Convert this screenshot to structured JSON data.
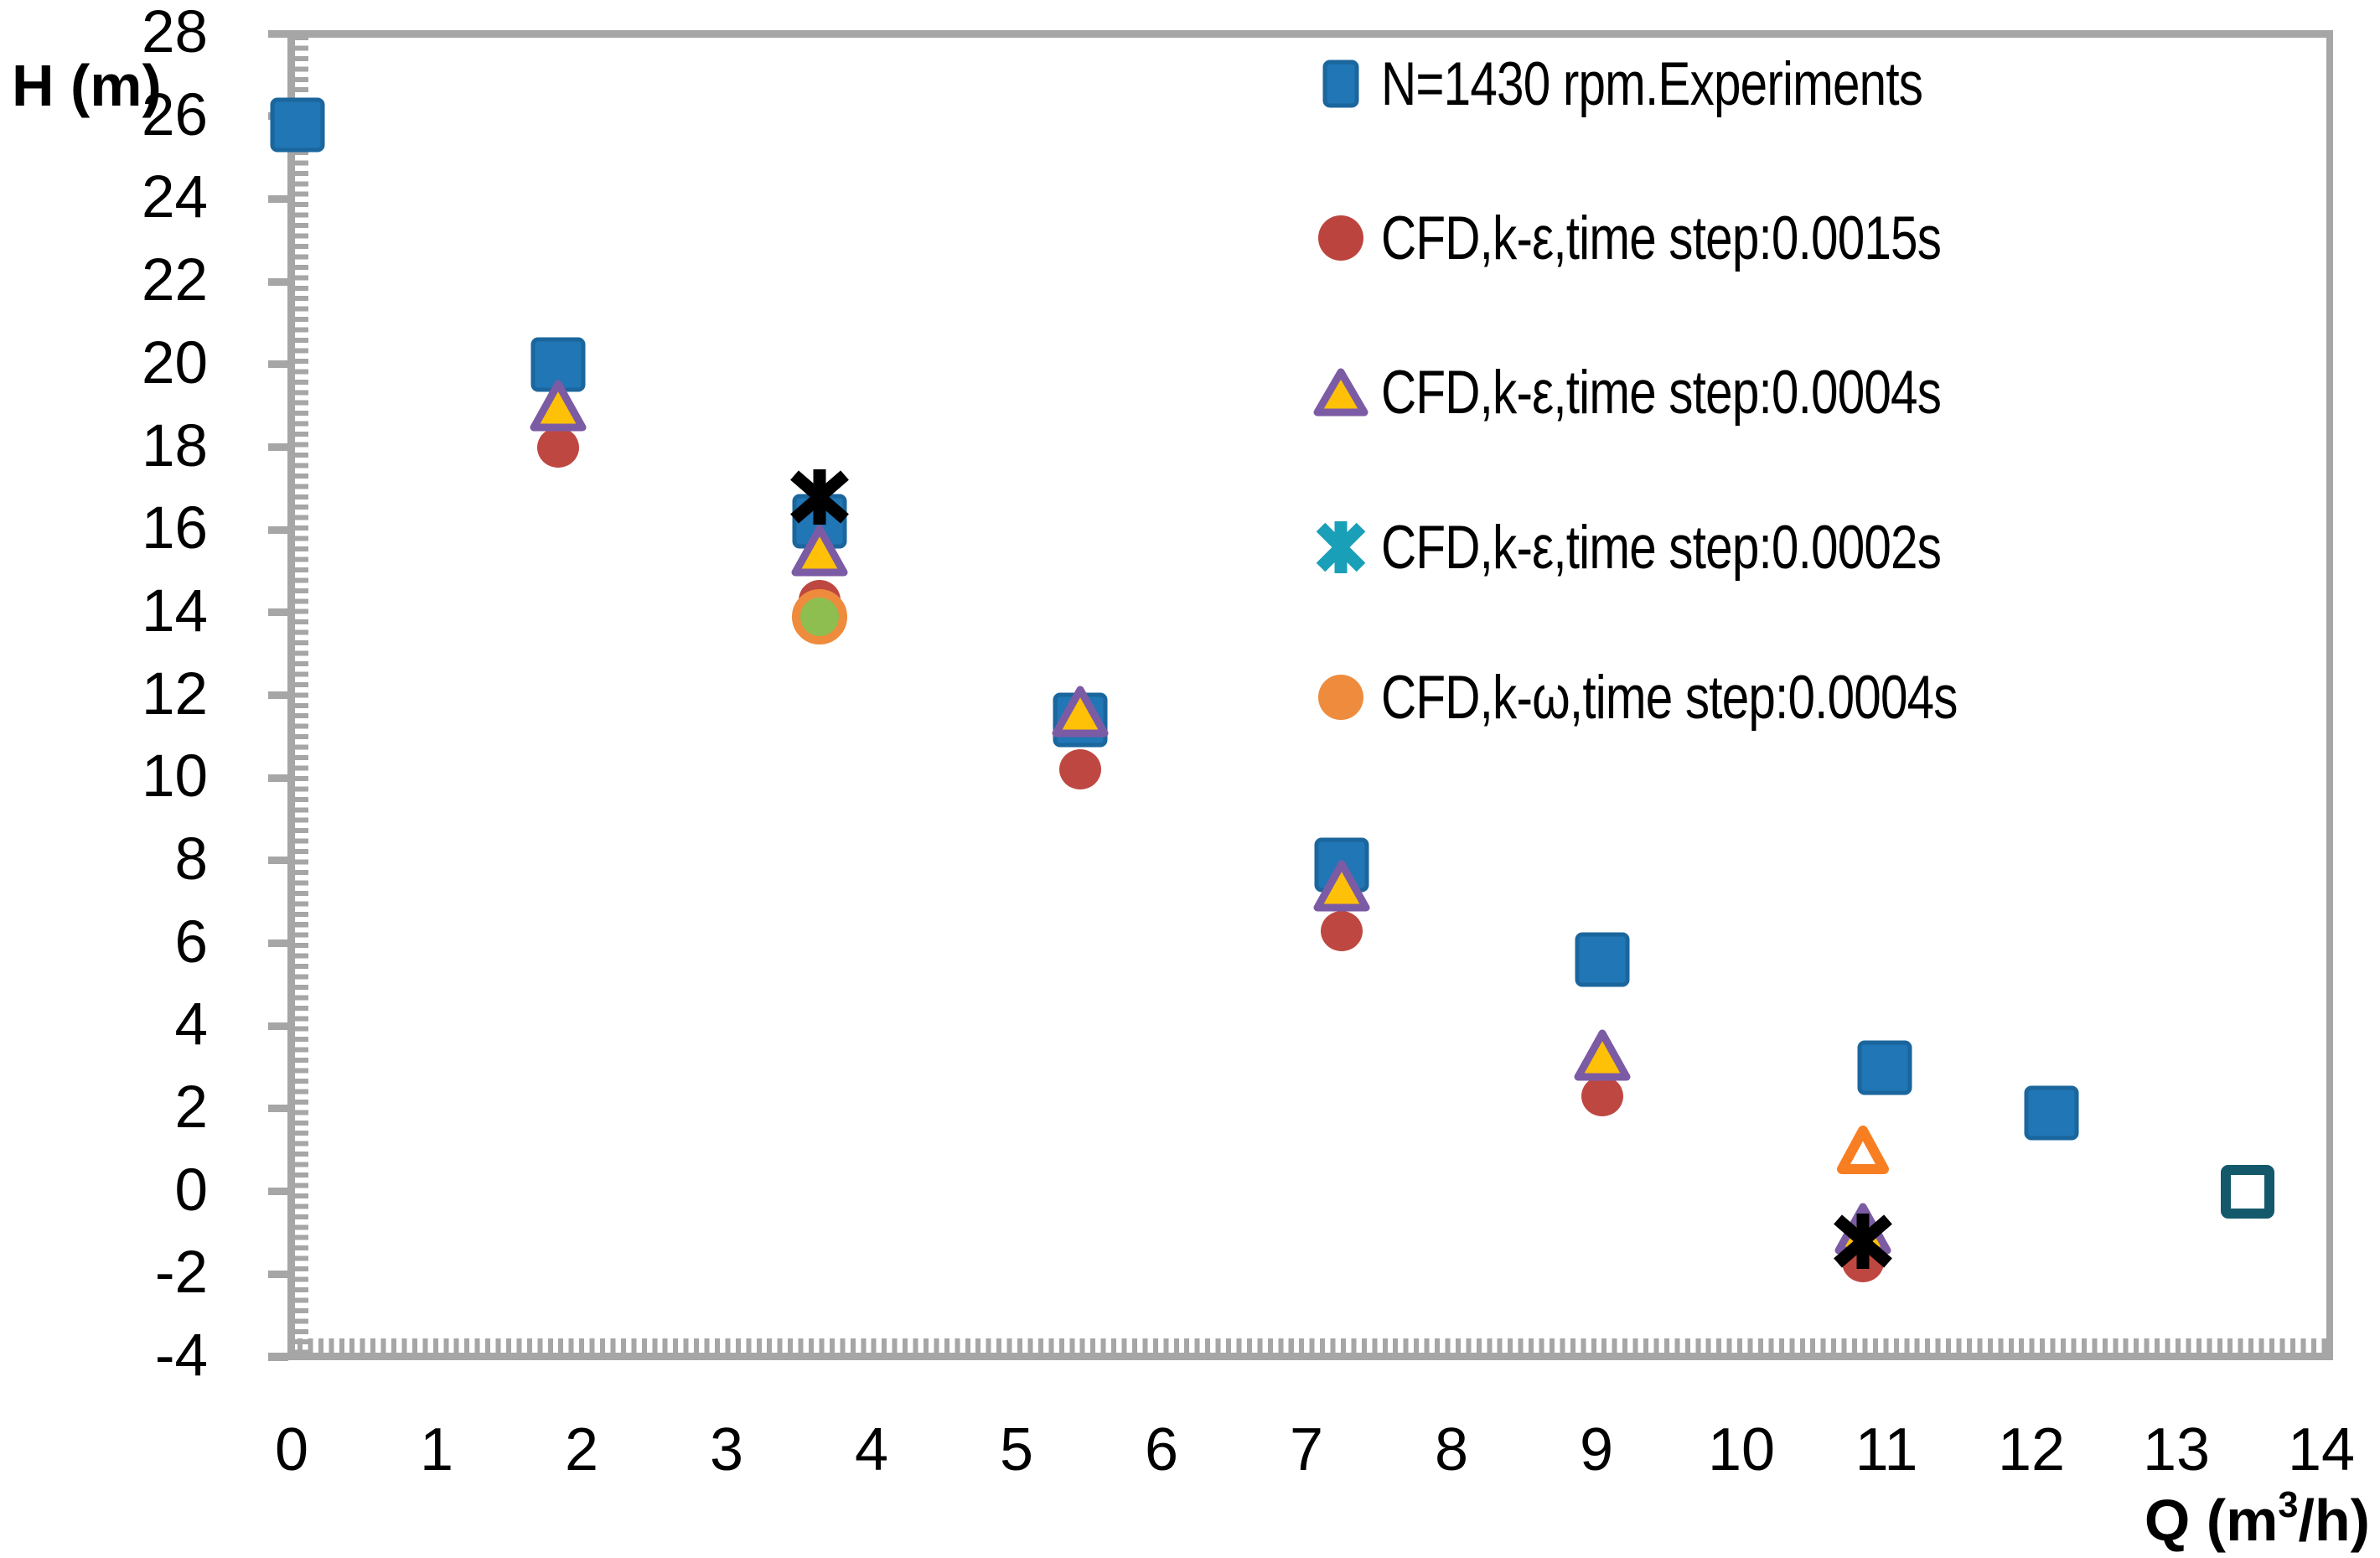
{
  "figure": {
    "bg": "#FFFFFF",
    "axis_color": "#A6A6A6",
    "text_color": "#000000"
  },
  "axes": {
    "y_title": "H (m)",
    "x_title_pre": "Q (m",
    "x_title_sup": "3",
    "x_title_post": "/h)",
    "x_tick_labels": [
      "0",
      "1",
      "2",
      "3",
      "4",
      "5",
      "6",
      "7",
      "8",
      "9",
      "10",
      "11",
      "12",
      "13",
      "14"
    ],
    "y_tick_labels": [
      "28",
      "26",
      "24",
      "22",
      "20",
      "18",
      "16",
      "14",
      "12",
      "10",
      "8",
      "6",
      "4",
      "2",
      "0",
      "-2",
      "-4"
    ]
  },
  "legend": {
    "items": [
      {
        "label": "N=1430 rpm.Experiments",
        "marker": "square",
        "color": "#2176B5",
        "stroke": "#1A669D"
      },
      {
        "label": "CFD,k-ε,time step:0.0015s",
        "marker": "ellipse",
        "color": "#BB453E"
      },
      {
        "label": "CFD,k-ε,time step:0.0004s",
        "marker": "triangle",
        "color": "#FFC107",
        "stroke": "#7C5BA5"
      },
      {
        "label": "CFD,k-ε,time step:0.0002s",
        "marker": "asterisk",
        "color": "#1A9FB8"
      },
      {
        "label": "CFD,k-ω,time step:0.0004s",
        "marker": "ellipse",
        "color": "#EE8B3D"
      }
    ]
  },
  "chart_data": {
    "type": "scatter",
    "title": "",
    "xlabel": "Q (m3/h)",
    "ylabel": "H (m)",
    "xlim": [
      0,
      14
    ],
    "ylim": [
      -4,
      28
    ],
    "x_major_unit": 1,
    "y_major_unit": 2,
    "grid": false,
    "legend_position": "upper right inside",
    "series": [
      {
        "name": "N=1430 rpm.Experiments",
        "marker": "square",
        "color": "#2176B5",
        "stroke": "#1A669D",
        "points": [
          [
            0,
            25.8
          ],
          [
            1.8,
            20.0
          ],
          [
            3.6,
            16.2
          ],
          [
            5.4,
            11.4
          ],
          [
            7.2,
            7.9
          ],
          [
            9.0,
            5.6
          ],
          [
            10.95,
            3.0
          ],
          [
            12.1,
            1.9
          ]
        ]
      },
      {
        "name": "CFD,k-ε,time step:0.0015s",
        "marker": "circle",
        "color": "#BE4841",
        "points": [
          [
            1.8,
            18.0
          ],
          [
            3.6,
            14.3
          ],
          [
            5.4,
            10.2
          ],
          [
            7.2,
            6.3
          ],
          [
            9.0,
            2.3
          ],
          [
            10.8,
            -1.7
          ]
        ]
      },
      {
        "name": "CFD,k-ε,time step:0.0004s",
        "marker": "triangle",
        "color": "#FFC107",
        "stroke": "#7C5BA5",
        "points": [
          [
            1.8,
            19.0
          ],
          [
            3.6,
            15.5
          ],
          [
            5.4,
            11.6
          ],
          [
            7.2,
            7.4
          ],
          [
            9.0,
            3.3
          ],
          [
            10.8,
            -0.9
          ]
        ]
      },
      {
        "name": "CFD,k-ω,time step:0.0004s (green fill, orange ring)",
        "marker": "ring-circle",
        "color": "#8EBE50",
        "stroke": "#EE8B3D",
        "points": [
          [
            3.6,
            13.9
          ]
        ]
      },
      {
        "name": "unlabeled hollow orange triangle",
        "marker": "triangle-hollow",
        "stroke": "#F87E22",
        "points": [
          [
            10.8,
            1.0
          ]
        ]
      },
      {
        "name": "unlabeled hollow teal square",
        "marker": "square-hollow",
        "stroke": "#14596B",
        "points": [
          [
            13.45,
            0.0
          ]
        ]
      },
      {
        "name": "CFD,k-ε,time step:0.0002s (plotted black)",
        "marker": "asterisk",
        "color": "#000000",
        "points": [
          [
            3.6,
            16.8
          ],
          [
            10.8,
            -1.2
          ]
        ]
      }
    ]
  }
}
